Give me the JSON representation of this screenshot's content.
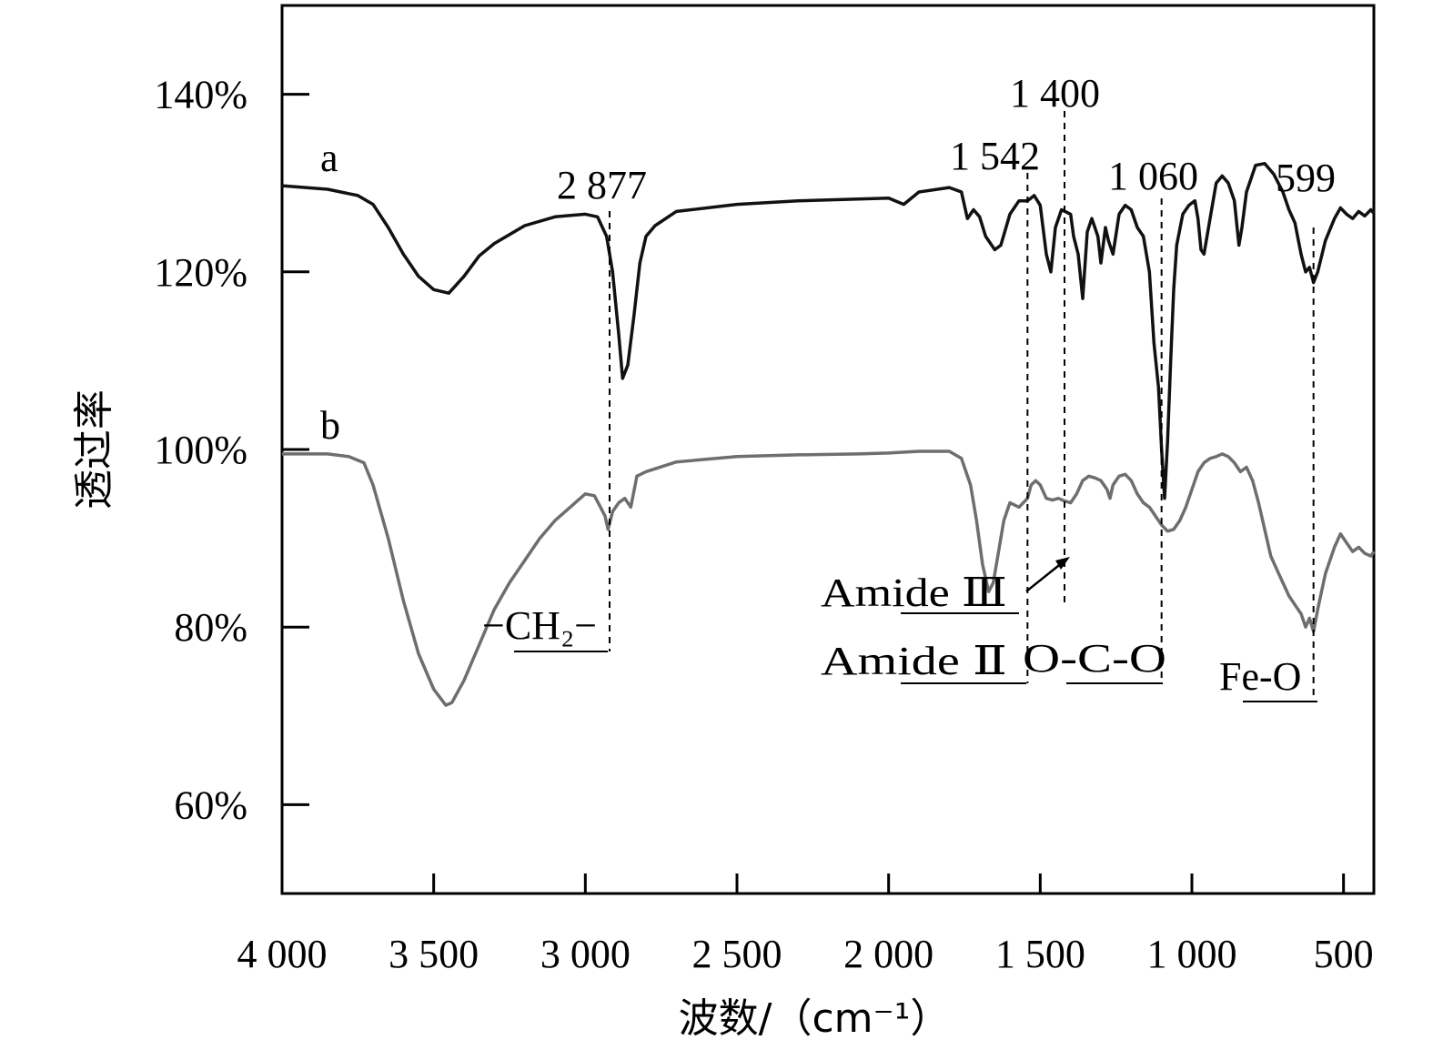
{
  "chart_data": {
    "type": "line",
    "xlabel": "波数/（cm⁻¹）",
    "ylabel": "透过率",
    "xlim": [
      4000,
      400
    ],
    "ylim": [
      50,
      150
    ],
    "x_ticks": [
      4000,
      3500,
      3000,
      2500,
      2000,
      1500,
      1000,
      500
    ],
    "x_tick_labels": [
      "4 000",
      "3 500",
      "3 000",
      "2 500",
      "2 000",
      "1 500",
      "1 000",
      "500"
    ],
    "y_ticks": [
      60,
      80,
      100,
      120,
      140
    ],
    "y_tick_labels": [
      "60%",
      "80%",
      "100%",
      "120%",
      "140%"
    ],
    "series": [
      {
        "name": "a",
        "color": "#111111",
        "points": [
          [
            4000,
            129.7
          ],
          [
            3850,
            129.3
          ],
          [
            3750,
            128.6
          ],
          [
            3700,
            127.6
          ],
          [
            3650,
            125.0
          ],
          [
            3600,
            122.0
          ],
          [
            3550,
            119.5
          ],
          [
            3500,
            118.0
          ],
          [
            3450,
            117.6
          ],
          [
            3400,
            119.5
          ],
          [
            3350,
            121.8
          ],
          [
            3300,
            123.2
          ],
          [
            3200,
            125.2
          ],
          [
            3100,
            126.2
          ],
          [
            3000,
            126.5
          ],
          [
            2960,
            126.2
          ],
          [
            2930,
            124.0
          ],
          [
            2910,
            120.0
          ],
          [
            2890,
            113.0
          ],
          [
            2877,
            108.0
          ],
          [
            2860,
            109.5
          ],
          [
            2840,
            115.0
          ],
          [
            2820,
            121.0
          ],
          [
            2800,
            124.0
          ],
          [
            2770,
            125.2
          ],
          [
            2700,
            126.8
          ],
          [
            2500,
            127.6
          ],
          [
            2300,
            128.0
          ],
          [
            2000,
            128.3
          ],
          [
            1950,
            127.6
          ],
          [
            1900,
            129.0
          ],
          [
            1800,
            129.5
          ],
          [
            1760,
            129.0
          ],
          [
            1740,
            126.0
          ],
          [
            1720,
            127.0
          ],
          [
            1700,
            126.2
          ],
          [
            1680,
            124.0
          ],
          [
            1650,
            122.5
          ],
          [
            1630,
            123.0
          ],
          [
            1600,
            126.5
          ],
          [
            1570,
            128.0
          ],
          [
            1542,
            128.0
          ],
          [
            1520,
            128.6
          ],
          [
            1500,
            127.5
          ],
          [
            1480,
            122.0
          ],
          [
            1465,
            120.0
          ],
          [
            1450,
            125.0
          ],
          [
            1430,
            127.0
          ],
          [
            1400,
            126.5
          ],
          [
            1390,
            124.0
          ],
          [
            1375,
            122.0
          ],
          [
            1360,
            117.0
          ],
          [
            1345,
            124.5
          ],
          [
            1330,
            126.0
          ],
          [
            1310,
            124.0
          ],
          [
            1300,
            121.0
          ],
          [
            1285,
            125.0
          ],
          [
            1275,
            123.5
          ],
          [
            1260,
            122.0
          ],
          [
            1240,
            126.5
          ],
          [
            1220,
            127.5
          ],
          [
            1200,
            127.0
          ],
          [
            1180,
            125.0
          ],
          [
            1160,
            124.0
          ],
          [
            1140,
            120.0
          ],
          [
            1125,
            112.0
          ],
          [
            1110,
            107.0
          ],
          [
            1100,
            100.0
          ],
          [
            1090,
            94.5
          ],
          [
            1080,
            101.0
          ],
          [
            1070,
            110.0
          ],
          [
            1060,
            118.0
          ],
          [
            1050,
            123.0
          ],
          [
            1030,
            126.5
          ],
          [
            1010,
            127.5
          ],
          [
            990,
            128.0
          ],
          [
            980,
            126.0
          ],
          [
            970,
            122.5
          ],
          [
            960,
            122.0
          ],
          [
            945,
            125.0
          ],
          [
            920,
            130.0
          ],
          [
            900,
            130.8
          ],
          [
            880,
            130.0
          ],
          [
            860,
            128.0
          ],
          [
            845,
            123.0
          ],
          [
            835,
            125.0
          ],
          [
            820,
            129.0
          ],
          [
            790,
            132.0
          ],
          [
            760,
            132.2
          ],
          [
            730,
            131.0
          ],
          [
            700,
            129.0
          ],
          [
            680,
            127.0
          ],
          [
            660,
            125.5
          ],
          [
            640,
            122.0
          ],
          [
            625,
            120.0
          ],
          [
            612,
            120.5
          ],
          [
            599,
            118.8
          ],
          [
            585,
            120.0
          ],
          [
            560,
            123.5
          ],
          [
            530,
            126.0
          ],
          [
            510,
            127.2
          ],
          [
            490,
            126.5
          ],
          [
            470,
            126.0
          ],
          [
            450,
            126.8
          ],
          [
            430,
            126.3
          ],
          [
            410,
            127.0
          ],
          [
            400,
            126.6
          ]
        ]
      },
      {
        "name": "b",
        "color": "#6e6e6e",
        "points": [
          [
            4000,
            99.5
          ],
          [
            3850,
            99.5
          ],
          [
            3780,
            99.2
          ],
          [
            3730,
            98.5
          ],
          [
            3700,
            96.0
          ],
          [
            3650,
            90.0
          ],
          [
            3600,
            83.0
          ],
          [
            3550,
            77.0
          ],
          [
            3500,
            73.0
          ],
          [
            3460,
            71.2
          ],
          [
            3440,
            71.5
          ],
          [
            3400,
            74.0
          ],
          [
            3350,
            78.0
          ],
          [
            3300,
            82.0
          ],
          [
            3250,
            85.0
          ],
          [
            3200,
            87.5
          ],
          [
            3150,
            90.0
          ],
          [
            3100,
            92.0
          ],
          [
            3050,
            93.5
          ],
          [
            3000,
            95.0
          ],
          [
            2970,
            94.8
          ],
          [
            2950,
            93.5
          ],
          [
            2935,
            92.5
          ],
          [
            2925,
            91.0
          ],
          [
            2910,
            93.0
          ],
          [
            2890,
            94.0
          ],
          [
            2870,
            94.5
          ],
          [
            2850,
            93.5
          ],
          [
            2830,
            97.0
          ],
          [
            2800,
            97.5
          ],
          [
            2700,
            98.6
          ],
          [
            2500,
            99.2
          ],
          [
            2300,
            99.4
          ],
          [
            2100,
            99.5
          ],
          [
            2000,
            99.6
          ],
          [
            1900,
            99.8
          ],
          [
            1800,
            99.8
          ],
          [
            1760,
            99.0
          ],
          [
            1730,
            96.0
          ],
          [
            1710,
            92.0
          ],
          [
            1690,
            87.0
          ],
          [
            1670,
            84.0
          ],
          [
            1655,
            85.0
          ],
          [
            1640,
            88.0
          ],
          [
            1620,
            92.0
          ],
          [
            1600,
            94.0
          ],
          [
            1570,
            93.5
          ],
          [
            1542,
            94.5
          ],
          [
            1530,
            96.0
          ],
          [
            1515,
            96.5
          ],
          [
            1500,
            96.0
          ],
          [
            1480,
            94.5
          ],
          [
            1460,
            94.3
          ],
          [
            1440,
            94.5
          ],
          [
            1420,
            94.2
          ],
          [
            1400,
            94.0
          ],
          [
            1380,
            95.0
          ],
          [
            1360,
            96.5
          ],
          [
            1340,
            97.0
          ],
          [
            1320,
            96.8
          ],
          [
            1300,
            96.5
          ],
          [
            1280,
            95.5
          ],
          [
            1270,
            94.5
          ],
          [
            1260,
            96.0
          ],
          [
            1240,
            97.0
          ],
          [
            1220,
            97.2
          ],
          [
            1200,
            96.5
          ],
          [
            1180,
            95.0
          ],
          [
            1160,
            94.0
          ],
          [
            1140,
            93.5
          ],
          [
            1120,
            92.5
          ],
          [
            1100,
            91.5
          ],
          [
            1080,
            90.8
          ],
          [
            1060,
            91.0
          ],
          [
            1040,
            92.0
          ],
          [
            1020,
            93.5
          ],
          [
            1000,
            95.5
          ],
          [
            980,
            97.5
          ],
          [
            960,
            98.5
          ],
          [
            940,
            99.0
          ],
          [
            920,
            99.2
          ],
          [
            900,
            99.5
          ],
          [
            880,
            99.2
          ],
          [
            860,
            98.5
          ],
          [
            840,
            97.5
          ],
          [
            820,
            98.0
          ],
          [
            800,
            96.5
          ],
          [
            780,
            94.0
          ],
          [
            760,
            91.0
          ],
          [
            740,
            88.0
          ],
          [
            720,
            86.5
          ],
          [
            700,
            85.0
          ],
          [
            680,
            83.5
          ],
          [
            660,
            82.5
          ],
          [
            640,
            81.5
          ],
          [
            625,
            80.0
          ],
          [
            612,
            81.0
          ],
          [
            599,
            79.5
          ],
          [
            585,
            82.0
          ],
          [
            560,
            86.0
          ],
          [
            530,
            89.0
          ],
          [
            510,
            90.5
          ],
          [
            490,
            89.5
          ],
          [
            470,
            88.5
          ],
          [
            450,
            89.0
          ],
          [
            430,
            88.3
          ],
          [
            410,
            88.0
          ],
          [
            400,
            88.5
          ]
        ]
      }
    ],
    "marker_lines": [
      {
        "x": 2920,
        "label": "2 877",
        "group_label": "−CH₂−"
      },
      {
        "x": 1542,
        "label": "1 542",
        "group_label": "Amide Ⅱ"
      },
      {
        "x": 1420,
        "label": "1 400",
        "group_label": "Amide Ⅲ"
      },
      {
        "x": 1100,
        "label": "1 060",
        "group_label": "O-C-O"
      },
      {
        "x": 599,
        "label": "599",
        "group_label": "Fe-O"
      }
    ],
    "series_labels": [
      "a",
      "b"
    ],
    "grid": false
  }
}
